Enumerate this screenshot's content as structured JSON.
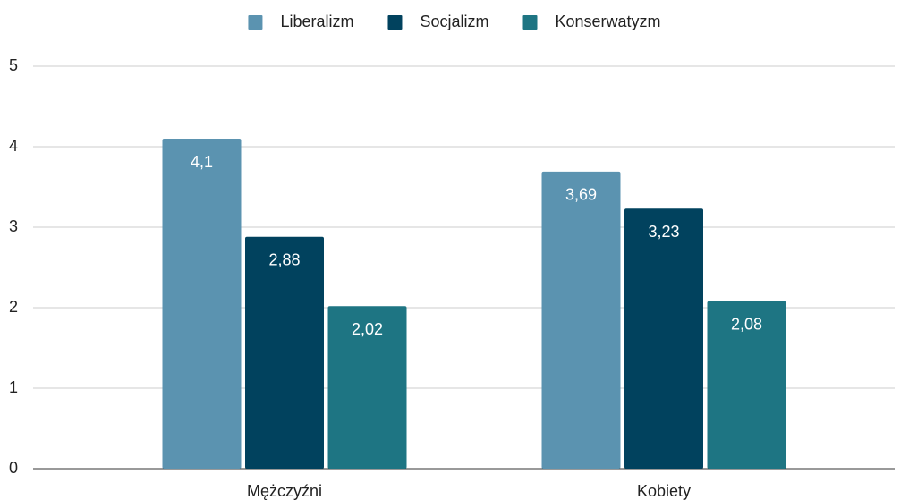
{
  "chart_data": {
    "type": "bar",
    "categories": [
      "Mężczyźni",
      "Kobiety"
    ],
    "series": [
      {
        "name": "Liberalizm",
        "color": "#5b93b0",
        "values": [
          4.1,
          3.69
        ],
        "value_labels": [
          "4,1",
          "3,69"
        ]
      },
      {
        "name": "Socjalizm",
        "color": "#01425e",
        "values": [
          2.88,
          3.23
        ],
        "value_labels": [
          "2,88",
          "3,23"
        ]
      },
      {
        "name": "Konserwatyzm",
        "color": "#1e7583",
        "values": [
          2.02,
          2.08
        ],
        "value_labels": [
          "2,02",
          "2,08"
        ]
      }
    ],
    "ylim": [
      0,
      5
    ],
    "yticks": [
      0,
      1,
      2,
      3,
      4,
      5
    ],
    "grid": true,
    "legend": "top"
  }
}
